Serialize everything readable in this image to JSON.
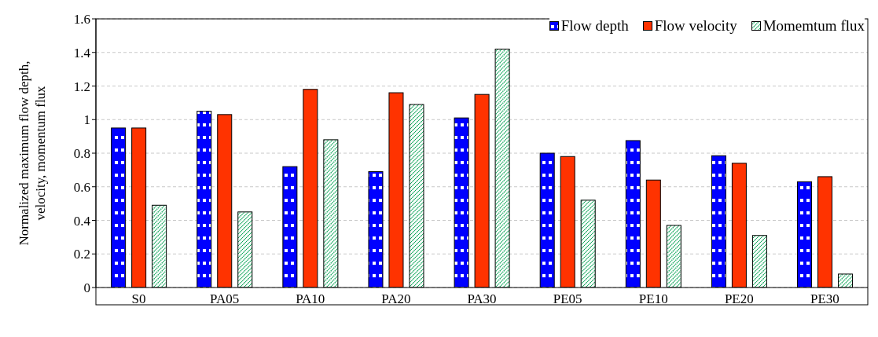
{
  "chart_data": {
    "type": "bar",
    "ylabel": "Normalized maximum flow depth, velocity, momentum flux",
    "categories": [
      "S0",
      "PA05",
      "PA10",
      "PA20",
      "PA30",
      "PE05",
      "PE10",
      "PE20",
      "PE30"
    ],
    "series": [
      {
        "name": "Flow depth",
        "color": "#0000ff",
        "values": [
          0.95,
          1.05,
          0.72,
          0.69,
          1.01,
          0.8,
          0.875,
          0.785,
          0.63
        ]
      },
      {
        "name": "Flow velocity",
        "color": "#ff3300",
        "values": [
          0.95,
          1.03,
          1.18,
          1.16,
          1.15,
          0.78,
          0.64,
          0.74,
          0.66
        ]
      },
      {
        "name": "Momemtum flux",
        "color": "#00a050",
        "values": [
          0.49,
          0.45,
          0.88,
          1.09,
          1.42,
          0.52,
          0.37,
          0.31,
          0.08
        ]
      }
    ],
    "ylim": [
      0,
      1.6
    ],
    "yticks": [
      0,
      0.2,
      0.4,
      0.6,
      0.8,
      1,
      1.2,
      1.4,
      1.6
    ],
    "grid": "y",
    "legend": "top right"
  }
}
